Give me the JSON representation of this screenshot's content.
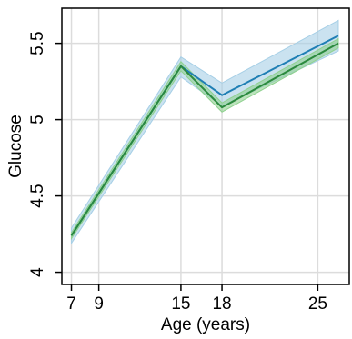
{
  "chart_data": {
    "type": "line",
    "xlabel": "Age (years)",
    "ylabel": "Glucose",
    "xlim": [
      6.3,
      27.3
    ],
    "ylim": [
      3.92,
      5.73
    ],
    "x_ticks": [
      7,
      9,
      15,
      18,
      25
    ],
    "y_ticks": [
      4,
      4.5,
      5,
      5.5
    ],
    "grid": true,
    "series": [
      {
        "color": "#1f7fb4",
        "band_color": "#a6cfe6",
        "x": [
          7,
          15,
          18,
          26.5
        ],
        "values": [
          4.24,
          5.35,
          5.16,
          5.55
        ],
        "lower": [
          4.19,
          5.28,
          5.09,
          5.45
        ],
        "upper": [
          4.29,
          5.41,
          5.24,
          5.65
        ]
      },
      {
        "color": "#2b8a3e",
        "band_color": "#8fd18f",
        "x": [
          7,
          15,
          18,
          26.5
        ],
        "values": [
          4.24,
          5.35,
          5.08,
          5.5
        ],
        "lower": [
          4.22,
          5.32,
          5.05,
          5.47
        ],
        "upper": [
          4.26,
          5.38,
          5.11,
          5.53
        ]
      }
    ]
  }
}
